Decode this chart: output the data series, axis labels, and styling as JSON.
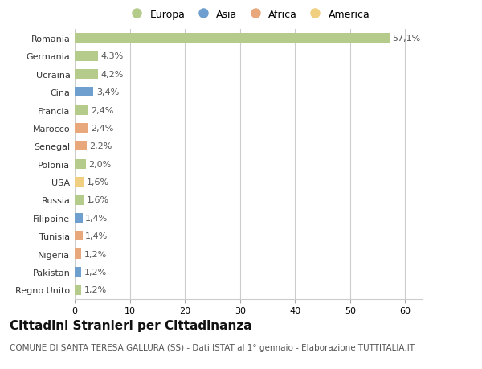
{
  "countries": [
    "Romania",
    "Germania",
    "Ucraina",
    "Cina",
    "Francia",
    "Marocco",
    "Senegal",
    "Polonia",
    "USA",
    "Russia",
    "Filippine",
    "Tunisia",
    "Nigeria",
    "Pakistan",
    "Regno Unito"
  ],
  "values": [
    57.1,
    4.3,
    4.2,
    3.4,
    2.4,
    2.4,
    2.2,
    2.0,
    1.6,
    1.6,
    1.4,
    1.4,
    1.2,
    1.2,
    1.2
  ],
  "labels": [
    "57,1%",
    "4,3%",
    "4,2%",
    "3,4%",
    "2,4%",
    "2,4%",
    "2,2%",
    "2,0%",
    "1,6%",
    "1,6%",
    "1,4%",
    "1,4%",
    "1,2%",
    "1,2%",
    "1,2%"
  ],
  "continents": [
    "Europa",
    "Europa",
    "Europa",
    "Asia",
    "Europa",
    "Africa",
    "Africa",
    "Europa",
    "America",
    "Europa",
    "Asia",
    "Africa",
    "Africa",
    "Asia",
    "Europa"
  ],
  "continent_colors": {
    "Europa": "#b5cb8b",
    "Asia": "#6f9fcf",
    "Africa": "#e8a87c",
    "America": "#f0d080"
  },
  "legend_entries": [
    "Europa",
    "Asia",
    "Africa",
    "America"
  ],
  "legend_colors": [
    "#b5cb8b",
    "#6f9fcf",
    "#e8a87c",
    "#f0d080"
  ],
  "title": "Cittadini Stranieri per Cittadinanza",
  "subtitle": "COMUNE DI SANTA TERESA GALLURA (SS) - Dati ISTAT al 1° gennaio - Elaborazione TUTTITALIA.IT",
  "xlim": [
    0,
    63
  ],
  "xticks": [
    0,
    10,
    20,
    30,
    40,
    50,
    60
  ],
  "background_color": "#ffffff",
  "bar_height": 0.55,
  "grid_color": "#cccccc",
  "label_fontsize": 8,
  "tick_fontsize": 8,
  "title_fontsize": 11,
  "subtitle_fontsize": 7.5
}
